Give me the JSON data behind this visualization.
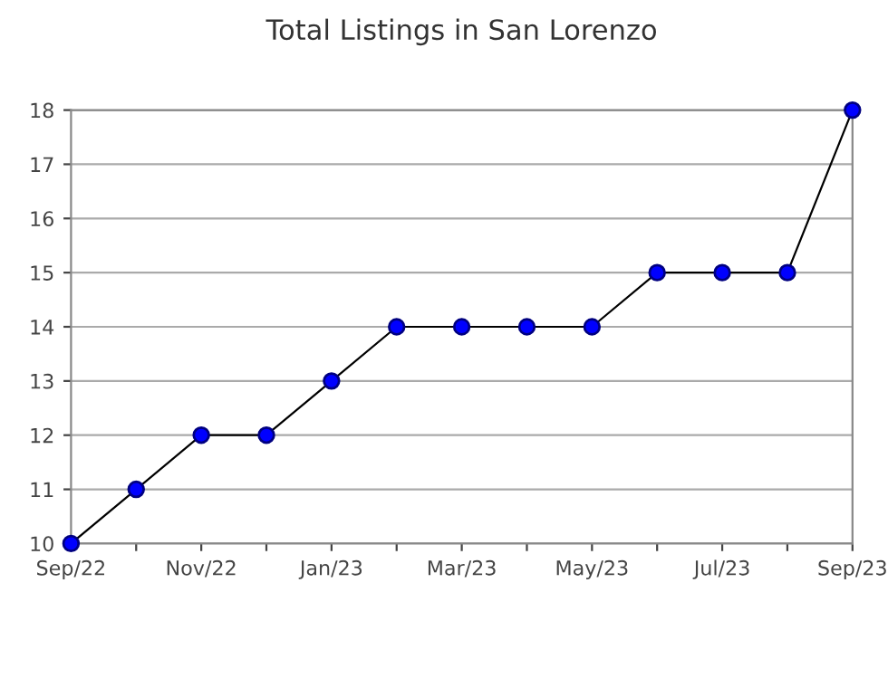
{
  "chart_data": {
    "type": "line",
    "title": "Total Listings in San Lorenzo",
    "categories": [
      "Sep/22",
      null,
      "Nov/22",
      null,
      "Jan/23",
      null,
      "Mar/23",
      null,
      "May/23",
      null,
      "Jul/23",
      null,
      "Sep/23"
    ],
    "series": [
      {
        "color": "#0000ff",
        "values": [
          10,
          11,
          12,
          12,
          13,
          14,
          14,
          14,
          14,
          15,
          15,
          15,
          18
        ]
      }
    ],
    "ylim": [
      10,
      18
    ],
    "yticks": [
      10,
      11,
      12,
      13,
      14,
      15,
      16,
      17,
      18
    ],
    "grid": "y",
    "marker": "circle",
    "line_style": "solid",
    "legend": false
  }
}
